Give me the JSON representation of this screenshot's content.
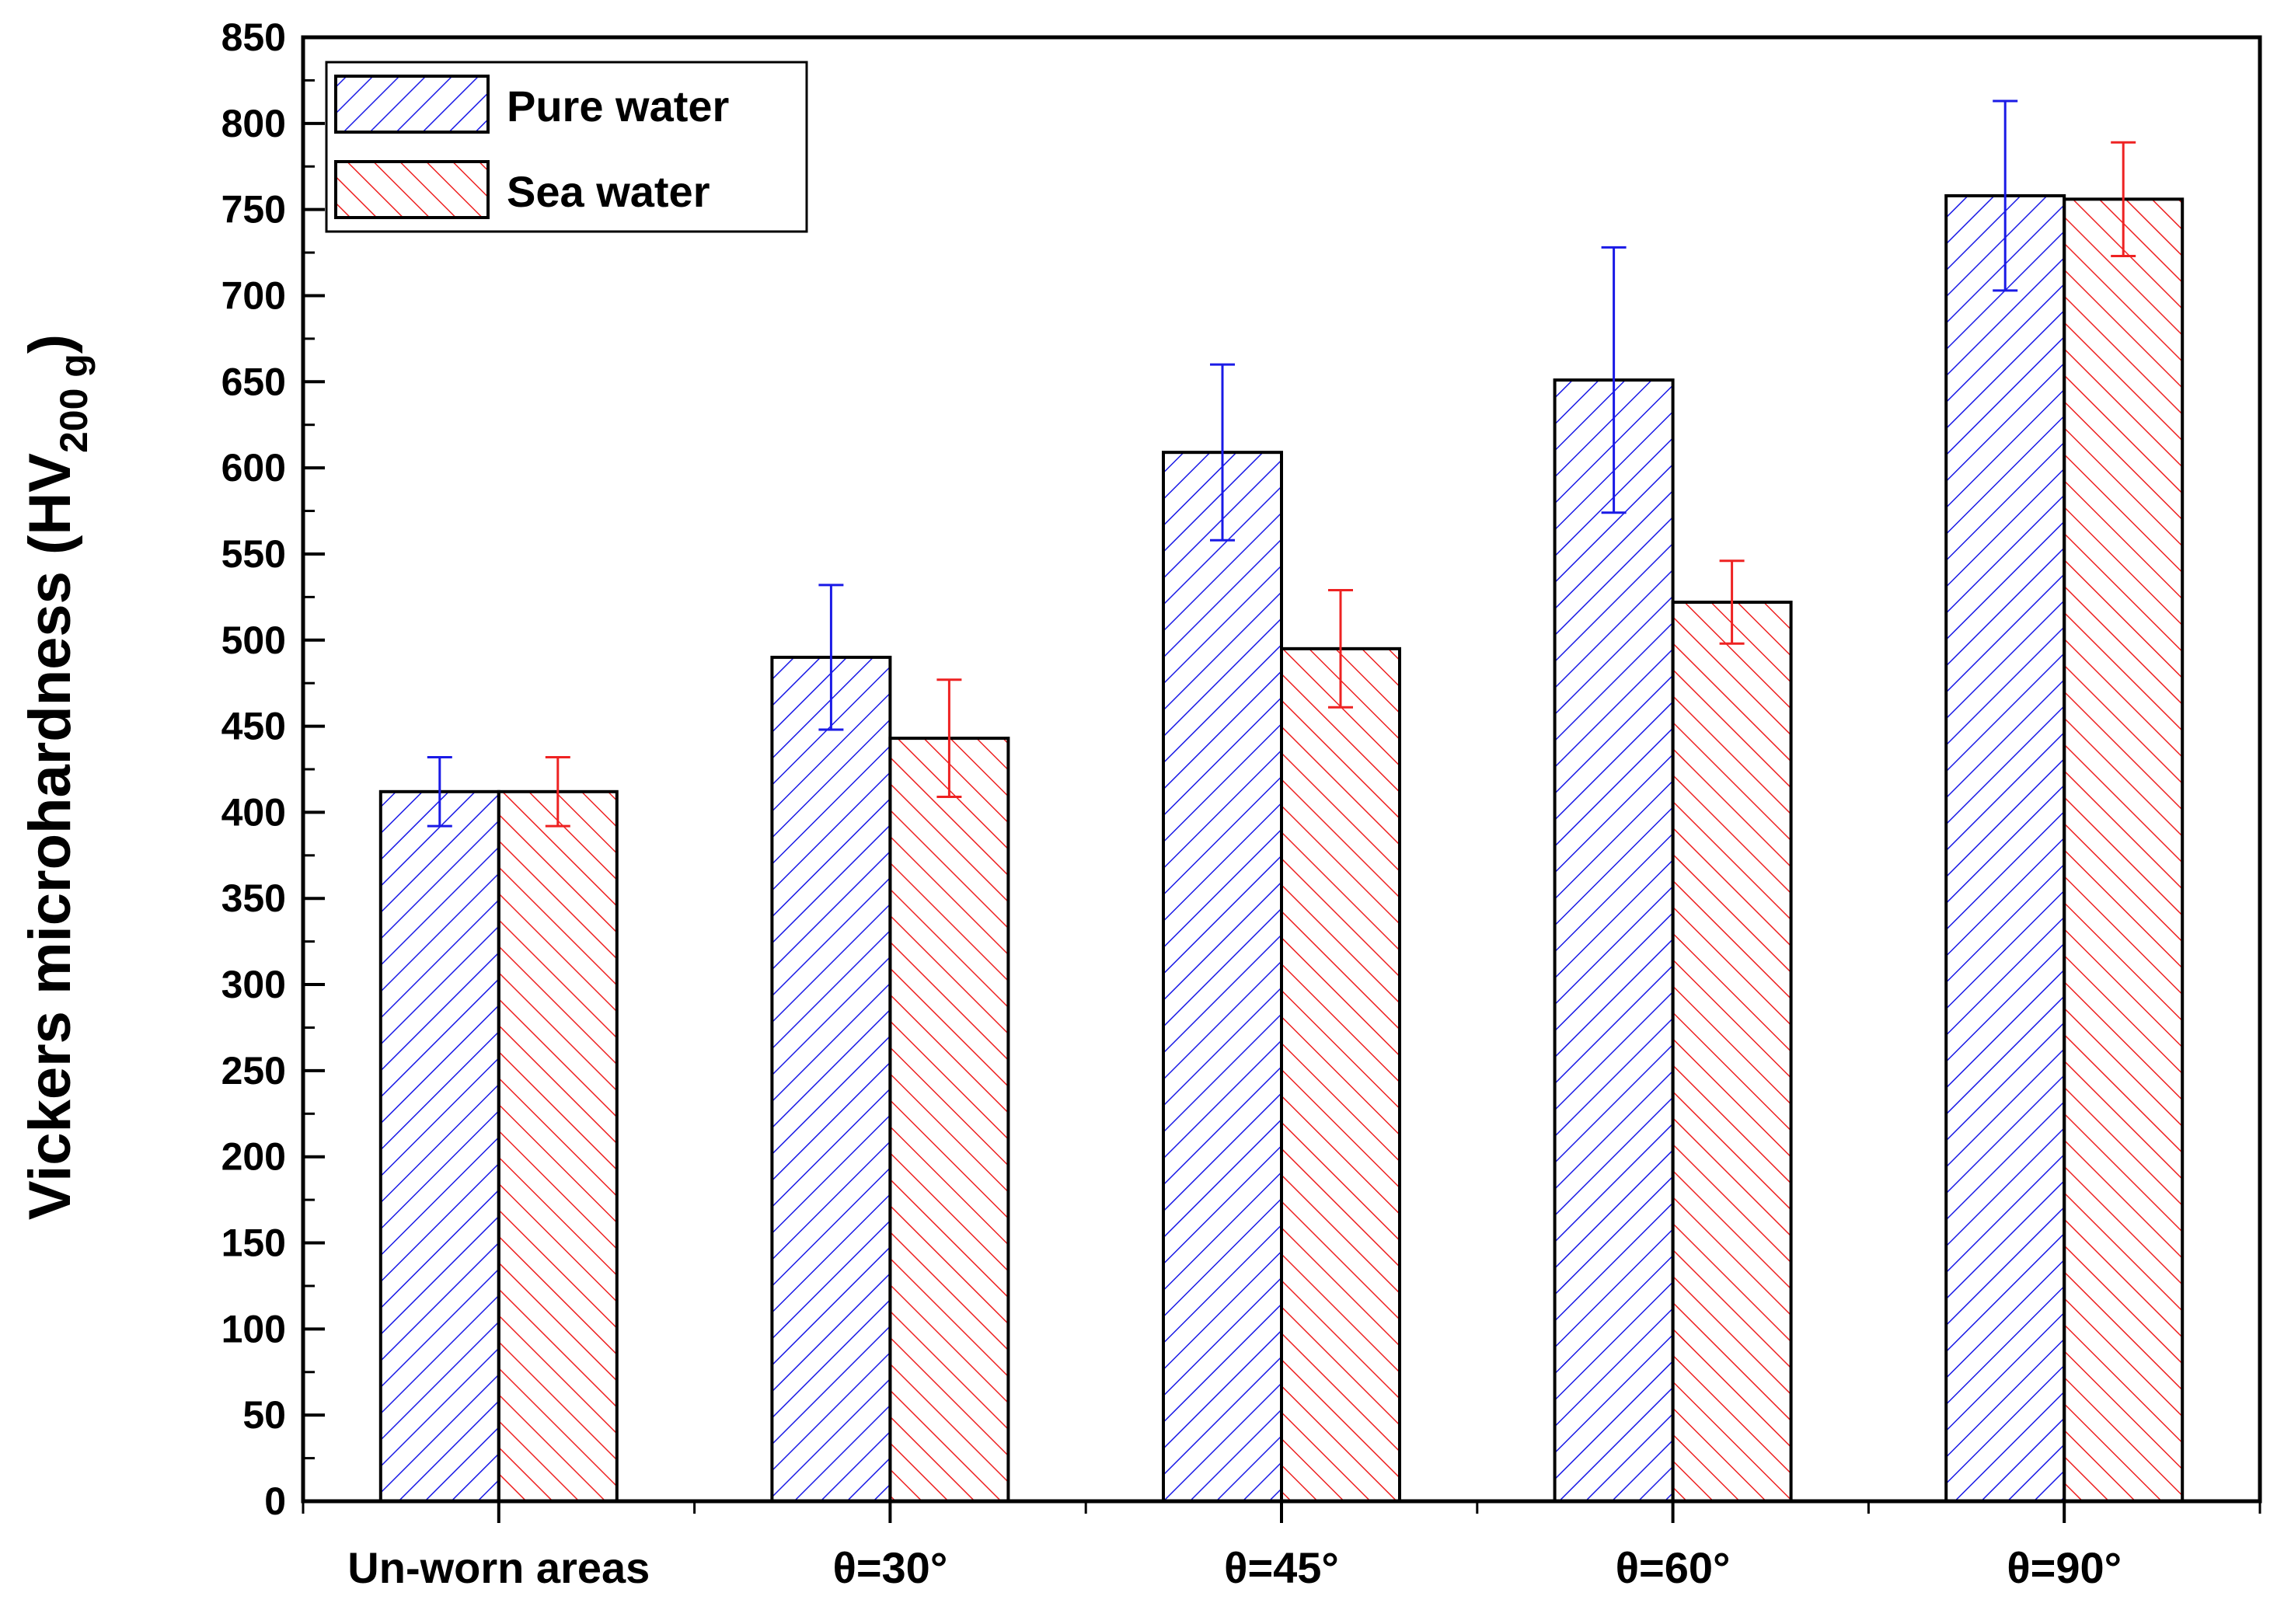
{
  "chart_data": {
    "type": "bar",
    "title": "",
    "xlabel": "",
    "ylabel": "Vickers microhardness (HV",
    "ylabel_subscript": "200 g",
    "ylabel_close": ")",
    "ylim": [
      0,
      850
    ],
    "yticks": [
      0,
      50,
      100,
      150,
      200,
      250,
      300,
      350,
      400,
      450,
      500,
      550,
      600,
      650,
      700,
      750,
      800,
      850
    ],
    "ytick_labels": [
      "0",
      "50",
      "100",
      "150",
      "200",
      "250",
      "300",
      "350",
      "400",
      "450",
      "500",
      "550",
      "600",
      "650",
      "700",
      "750",
      "800",
      "850"
    ],
    "categories": [
      "Un-worn areas",
      "θ=30°",
      "θ=45°",
      "θ=60°",
      "θ=90°"
    ],
    "series": [
      {
        "name": "Pure water",
        "color": "#1a1ae6",
        "hatch": "forward-diagonal",
        "values": [
          412,
          490,
          609,
          651,
          758
        ],
        "error": [
          20,
          42,
          51,
          77,
          55
        ]
      },
      {
        "name": "Sea water",
        "color": "#ee2222",
        "hatch": "back-diagonal",
        "values": [
          412,
          443,
          495,
          522,
          756
        ],
        "error": [
          20,
          34,
          34,
          24,
          33
        ]
      }
    ],
    "legend_position": "top-left",
    "grid": false
  }
}
